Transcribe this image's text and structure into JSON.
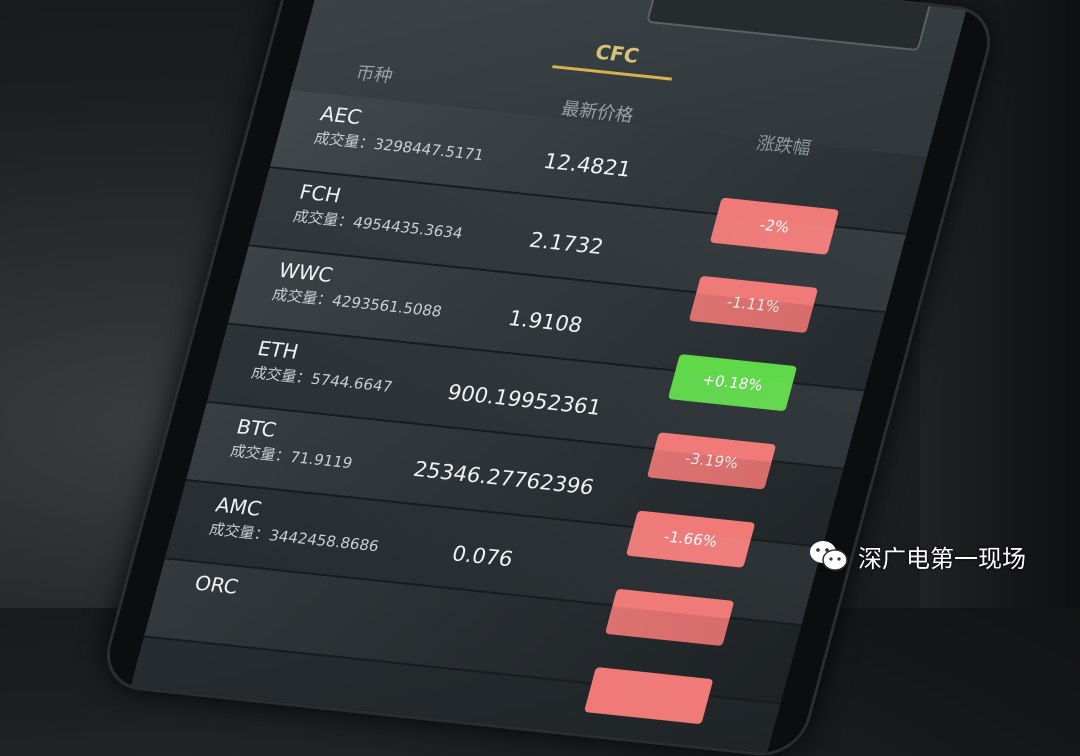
{
  "header": {
    "tab": "CFC"
  },
  "columns": {
    "coin": "币种",
    "price": "最新价格",
    "change": "涨跌幅"
  },
  "volume_label": "成交量：",
  "colors": {
    "down": "#f07a78",
    "up": "#5fd84a",
    "accent": "#d8b24a",
    "screen_bg": "#2c3236"
  },
  "rows": [
    {
      "name": "AEC",
      "volume": "3298447.5171",
      "price": "12.4821",
      "change": "-2%",
      "dir": "down"
    },
    {
      "name": "FCH",
      "volume": "4954435.3634",
      "price": "2.1732",
      "change": "-1.11%",
      "dir": "down"
    },
    {
      "name": "WWC",
      "volume": "4293561.5088",
      "price": "1.9108",
      "change": "+0.18%",
      "dir": "up"
    },
    {
      "name": "ETH",
      "volume": "5744.6647",
      "price": "900.19952361",
      "change": "-3.19%",
      "dir": "down"
    },
    {
      "name": "BTC",
      "volume": "71.9119",
      "price": "25346.27762396",
      "change": "-1.66%",
      "dir": "down"
    },
    {
      "name": "AMC",
      "volume": "3442458.8686",
      "price": "0.076",
      "change": "",
      "dir": "down"
    },
    {
      "name": "ORC",
      "volume": "",
      "price": "",
      "change": "",
      "dir": "down"
    }
  ],
  "watermark": {
    "icon": "wechat-icon",
    "text": "深广电第一现场"
  }
}
